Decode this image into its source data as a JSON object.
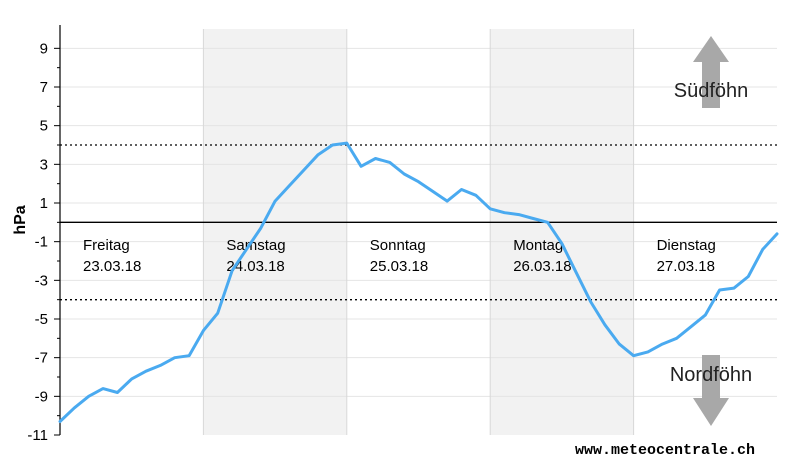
{
  "chart_data": {
    "type": "line",
    "ylabel": "hPa",
    "ylim": [
      -11,
      10
    ],
    "yticks": [
      9,
      7,
      5,
      3,
      1,
      -1,
      -3,
      -5,
      -7,
      -9,
      -11
    ],
    "thresholds": [
      4,
      -4
    ],
    "zero_line": 0,
    "days": [
      {
        "name": "Freitag",
        "date": "23.03.18",
        "shaded": false
      },
      {
        "name": "Samstag",
        "date": "24.03.18",
        "shaded": true
      },
      {
        "name": "Sonntag",
        "date": "25.03.18",
        "shaded": false
      },
      {
        "name": "Montag",
        "date": "26.03.18",
        "shaded": true
      },
      {
        "name": "Dienstag",
        "date": "27.03.18",
        "shaded": false
      }
    ],
    "zones": {
      "upper": "Südföhn",
      "lower": "Nordföhn"
    },
    "credit": "www.meteocentrale.ch",
    "series": [
      {
        "color": "#4aaaf0",
        "x": [
          0,
          0.1,
          0.2,
          0.3,
          0.4,
          0.5,
          0.6,
          0.7,
          0.8,
          0.9,
          1.0,
          1.1,
          1.2,
          1.3,
          1.4,
          1.5,
          1.6,
          1.7,
          1.8,
          1.9,
          2.0,
          2.1,
          2.2,
          2.3,
          2.4,
          2.5,
          2.6,
          2.7,
          2.8,
          2.9,
          3.0,
          3.1,
          3.2,
          3.3,
          3.4,
          3.5,
          3.6,
          3.7,
          3.8,
          3.9,
          4.0,
          4.1,
          4.2,
          4.3,
          4.4,
          4.5,
          4.6,
          4.7,
          4.8,
          4.9,
          5.0
        ],
        "y": [
          -10.3,
          -9.6,
          -9.0,
          -8.6,
          -8.8,
          -8.1,
          -7.7,
          -7.4,
          -7.0,
          -6.9,
          -5.6,
          -4.7,
          -2.5,
          -1.4,
          -0.3,
          1.1,
          1.9,
          2.7,
          3.5,
          4.0,
          4.1,
          2.9,
          3.3,
          3.1,
          2.5,
          2.1,
          1.6,
          1.1,
          1.7,
          1.4,
          0.7,
          0.5,
          0.4,
          0.2,
          0.0,
          -1.1,
          -2.6,
          -4.1,
          -5.3,
          -6.3,
          -6.9,
          -6.7,
          -6.3,
          -6.0,
          -5.4,
          -4.8,
          -3.5,
          -3.4,
          -2.8,
          -1.4,
          -0.6
        ]
      }
    ]
  }
}
